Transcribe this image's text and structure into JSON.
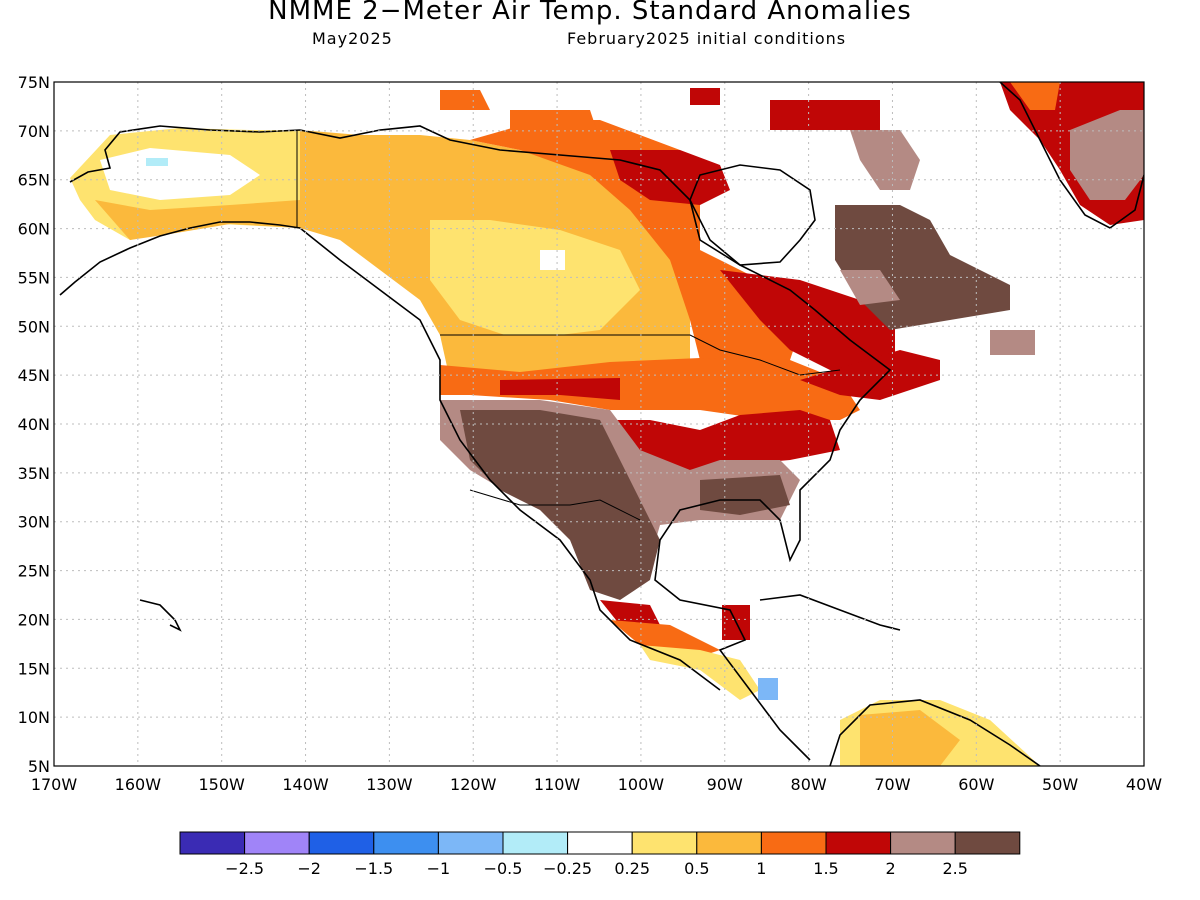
{
  "title": "NMME 2−Meter Air Temp. Standard Anomalies",
  "valid_month": "May2025",
  "init_conditions": "February2025 initial conditions",
  "lat_labels": [
    "75N",
    "70N",
    "65N",
    "60N",
    "55N",
    "50N",
    "45N",
    "40N",
    "35N",
    "30N",
    "25N",
    "20N",
    "15N",
    "10N",
    "5N"
  ],
  "lon_labels": [
    "170W",
    "160W",
    "150W",
    "140W",
    "130W",
    "120W",
    "110W",
    "100W",
    "90W",
    "80W",
    "70W",
    "60W",
    "50W",
    "40W"
  ],
  "colorbar": {
    "colors": [
      "#3a2bb4",
      "#a084f8",
      "#1f60e6",
      "#3d8ff0",
      "#7cb7f7",
      "#b2ecf8",
      "#ffffff",
      "#fee36f",
      "#fbb93c",
      "#f86b14",
      "#c00606",
      "#b48a84",
      "#6f4a40"
    ],
    "labels": [
      "−2.5",
      "−2",
      "−1.5",
      "−1",
      "−0.5",
      "−0.25",
      "0.25",
      "0.5",
      "1",
      "1.5",
      "2",
      "2.5"
    ]
  },
  "colors": {
    "ocean": "#ffffff",
    "coast": "#000000",
    "grid": "#bdbdbd"
  }
}
